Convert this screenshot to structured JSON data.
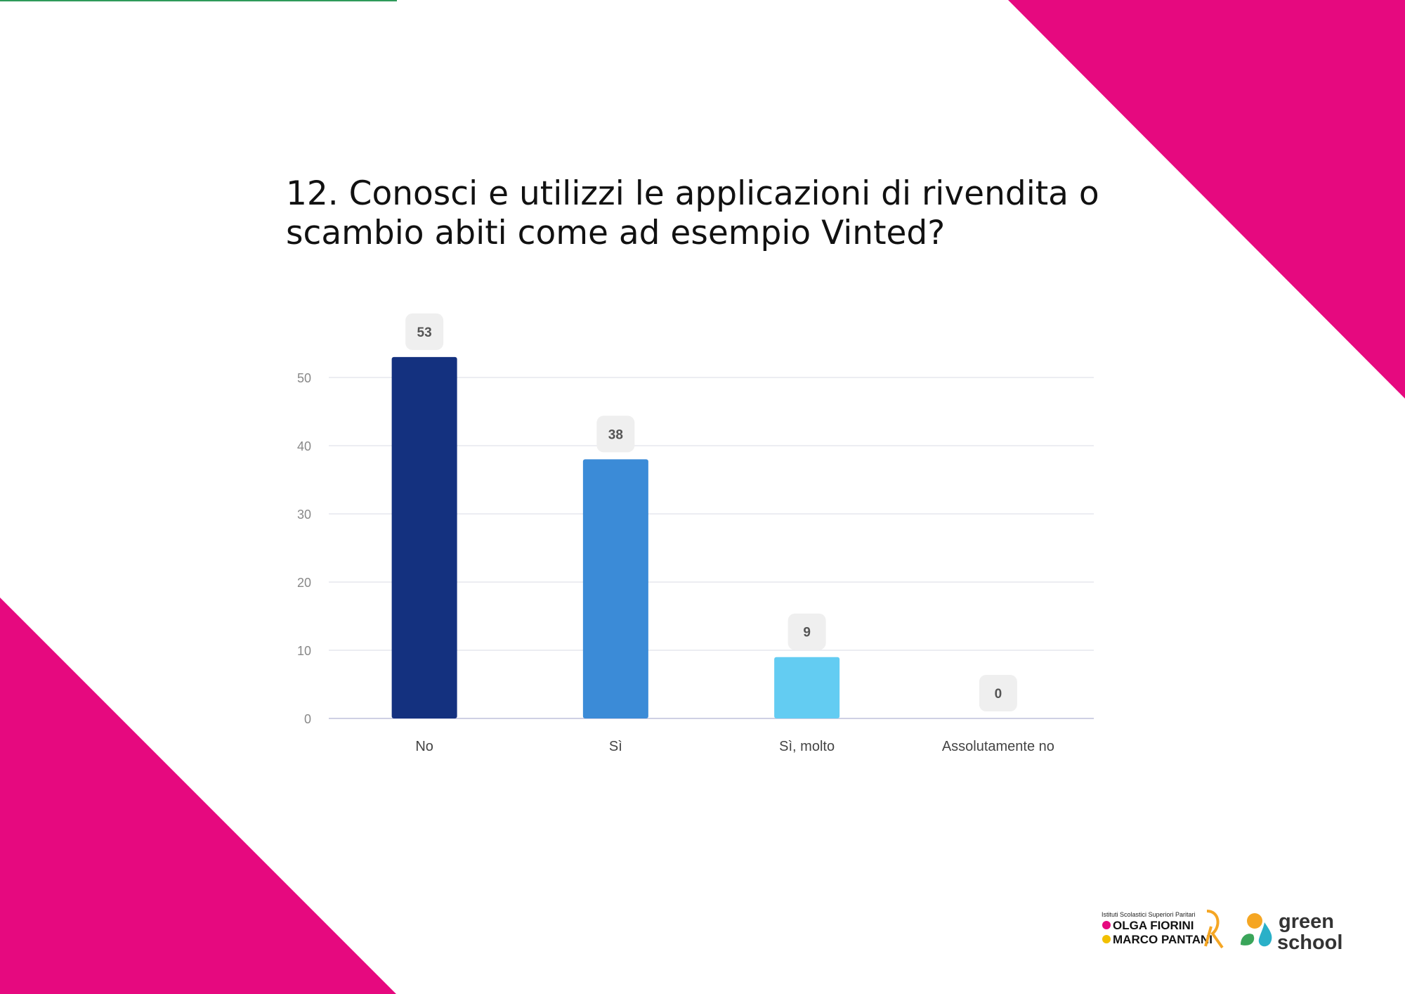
{
  "title": "12. Conosci e utilizzi le applicazioni di rivendita o scambio abiti come ad esempio Vinted?",
  "colors": {
    "decor": "#e6097f",
    "bars": [
      "#14317f",
      "#3b8bd7",
      "#63ccf2",
      "#63ccf2"
    ],
    "grid": "#e6e7ee",
    "axis": "#cfd0e4",
    "label_bg": "#efefef",
    "label_text": "#555555",
    "tick_text": "#888888",
    "category_text": "#444444"
  },
  "chart_data": {
    "type": "bar",
    "categories": [
      "No",
      "Sì",
      "Sì, molto",
      "Assolutamente no"
    ],
    "values": [
      53,
      38,
      9,
      0
    ],
    "yticks": [
      0,
      10,
      20,
      30,
      40,
      50
    ],
    "ylim": [
      0,
      55
    ],
    "grid": true,
    "data_labels": true
  },
  "logos": {
    "school_small": "Istituti Scolastici Superiori Paritari",
    "school_line1": "OLGA FIORINI",
    "school_line2": "MARCO PANTANI",
    "green_line1": "green",
    "green_line2": "school"
  }
}
